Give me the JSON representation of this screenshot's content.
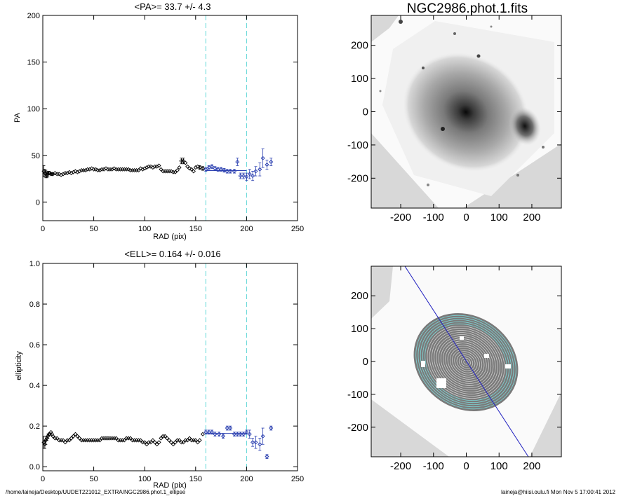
{
  "footer": {
    "path": "/home/laineja/Desktop/UUDET221012_EXTRA/NGC2986.phot.1_ellipse",
    "user_date": "laineja@hiisi.oulu.fi  Mon Nov  5 17:00:41 2012"
  },
  "colors": {
    "points": "#000000",
    "fit_points": "#2a3fb0",
    "fit_line": "#2a3fb0",
    "range_lines": "#5fd6d6",
    "contours": "#7fd8d8",
    "major_axis": "#2020c0"
  },
  "chart_data": [
    {
      "type": "scatter",
      "title": "<PA>=  33.7 +/-   4.3",
      "xlabel": "RAD (pix)",
      "ylabel": "PA",
      "xlim": [
        0,
        250
      ],
      "ylim": [
        -20,
        200
      ],
      "xticks": [
        "0",
        "50",
        "100",
        "150",
        "200",
        "250"
      ],
      "yticks": [
        "0",
        "50",
        "100",
        "150",
        "200"
      ],
      "range_lines": [
        160,
        200
      ],
      "fit_line": {
        "x": [
          160,
          200
        ],
        "y": 33.7
      },
      "series": [
        {
          "values": [
            [
              1,
              33
            ],
            [
              2,
              31
            ],
            [
              3,
              30
            ],
            [
              4,
              29
            ],
            [
              5,
              30
            ],
            [
              6,
              31
            ],
            [
              7,
              31
            ],
            [
              8,
              30
            ],
            [
              9,
              30
            ],
            [
              10,
              30
            ],
            [
              12,
              31
            ],
            [
              14,
              30
            ],
            [
              16,
              30
            ],
            [
              18,
              29
            ],
            [
              20,
              30
            ],
            [
              22,
              31
            ],
            [
              24,
              31
            ],
            [
              26,
              32
            ],
            [
              28,
              31
            ],
            [
              30,
              32
            ],
            [
              32,
              33
            ],
            [
              34,
              32
            ],
            [
              36,
              33
            ],
            [
              38,
              34
            ],
            [
              40,
              34
            ],
            [
              42,
              34
            ],
            [
              44,
              35
            ],
            [
              46,
              35
            ],
            [
              48,
              36
            ],
            [
              50,
              35
            ],
            [
              52,
              35
            ],
            [
              54,
              34
            ],
            [
              56,
              34
            ],
            [
              58,
              35
            ],
            [
              60,
              35
            ],
            [
              62,
              36
            ],
            [
              64,
              35
            ],
            [
              66,
              35
            ],
            [
              68,
              35
            ],
            [
              70,
              36
            ],
            [
              72,
              35
            ],
            [
              74,
              35
            ],
            [
              76,
              35
            ],
            [
              78,
              35
            ],
            [
              80,
              35
            ],
            [
              82,
              35
            ],
            [
              84,
              35
            ],
            [
              86,
              34
            ],
            [
              88,
              34
            ],
            [
              90,
              34
            ],
            [
              92,
              34
            ],
            [
              94,
              34
            ],
            [
              96,
              36
            ],
            [
              98,
              35
            ],
            [
              100,
              36
            ],
            [
              102,
              37
            ],
            [
              104,
              38
            ],
            [
              106,
              38
            ],
            [
              108,
              37
            ],
            [
              110,
              38
            ],
            [
              112,
              38
            ],
            [
              114,
              39
            ],
            [
              116,
              35
            ],
            [
              118,
              33
            ],
            [
              120,
              33
            ],
            [
              122,
              33
            ],
            [
              124,
              33
            ],
            [
              126,
              33
            ],
            [
              128,
              32
            ],
            [
              130,
              32
            ],
            [
              132,
              34
            ],
            [
              134,
              37
            ],
            [
              136,
              44
            ],
            [
              138,
              44
            ],
            [
              140,
              42
            ],
            [
              142,
              38
            ],
            [
              144,
              36
            ],
            [
              146,
              35
            ],
            [
              148,
              33
            ],
            [
              150,
              37
            ],
            [
              152,
              38
            ],
            [
              154,
              37
            ],
            [
              157,
              36
            ]
          ],
          "errors": [
            [
              1,
              6
            ],
            [
              2,
              4
            ],
            [
              3,
              4
            ],
            [
              4,
              3
            ],
            [
              5,
              3
            ],
            [
              6,
              2
            ],
            [
              136,
              3
            ],
            [
              138,
              3
            ],
            [
              154,
              2
            ],
            [
              157,
              2
            ]
          ]
        },
        {
          "name": "fit",
          "values": [
            [
              160,
              35
            ],
            [
              163,
              37
            ],
            [
              166,
              38
            ],
            [
              169,
              36
            ],
            [
              172,
              35
            ],
            [
              175,
              35
            ],
            [
              178,
              34
            ],
            [
              181,
              33
            ],
            [
              184,
              33
            ],
            [
              188,
              33
            ],
            [
              191,
              43
            ],
            [
              194,
              28
            ],
            [
              197,
              28
            ],
            [
              200,
              27
            ],
            [
              203,
              30
            ],
            [
              206,
              28
            ],
            [
              209,
              33
            ],
            [
              213,
              35
            ],
            [
              216,
              47
            ],
            [
              220,
              40
            ],
            [
              224,
              43
            ]
          ],
          "errors": [
            [
              160,
              2
            ],
            [
              163,
              2
            ],
            [
              166,
              2
            ],
            [
              169,
              2
            ],
            [
              172,
              2
            ],
            [
              175,
              2
            ],
            [
              178,
              2
            ],
            [
              181,
              2
            ],
            [
              184,
              2
            ],
            [
              188,
              2
            ],
            [
              191,
              4
            ],
            [
              194,
              3
            ],
            [
              197,
              3
            ],
            [
              200,
              4
            ],
            [
              203,
              5
            ],
            [
              206,
              5
            ],
            [
              209,
              5
            ],
            [
              213,
              7
            ],
            [
              216,
              10
            ],
            [
              220,
              5
            ],
            [
              224,
              4
            ]
          ]
        }
      ]
    },
    {
      "type": "scatter",
      "title": "<ELL>= 0.164 +/-  0.016",
      "xlabel": "RAD (pix)",
      "ylabel": "ellipticity",
      "xlim": [
        0,
        250
      ],
      "ylim": [
        -0.02,
        1.0
      ],
      "xticks": [
        "0",
        "50",
        "100",
        "150",
        "200",
        "250"
      ],
      "yticks": [
        "0.0",
        "0.2",
        "0.4",
        "0.6",
        "0.8",
        "1.0"
      ],
      "range_lines": [
        160,
        200
      ],
      "fit_line": {
        "x": [
          160,
          200
        ],
        "y": 0.164
      },
      "series": [
        {
          "values": [
            [
              1,
              0.12
            ],
            [
              2,
              0.11
            ],
            [
              3,
              0.13
            ],
            [
              4,
              0.14
            ],
            [
              5,
              0.15
            ],
            [
              6,
              0.16
            ],
            [
              7,
              0.16
            ],
            [
              8,
              0.17
            ],
            [
              9,
              0.16
            ],
            [
              10,
              0.15
            ],
            [
              12,
              0.14
            ],
            [
              14,
              0.14
            ],
            [
              16,
              0.13
            ],
            [
              18,
              0.13
            ],
            [
              20,
              0.13
            ],
            [
              22,
              0.12
            ],
            [
              24,
              0.13
            ],
            [
              26,
              0.13
            ],
            [
              28,
              0.14
            ],
            [
              30,
              0.15
            ],
            [
              32,
              0.16
            ],
            [
              34,
              0.15
            ],
            [
              36,
              0.14
            ],
            [
              38,
              0.13
            ],
            [
              40,
              0.13
            ],
            [
              42,
              0.13
            ],
            [
              44,
              0.13
            ],
            [
              46,
              0.13
            ],
            [
              48,
              0.13
            ],
            [
              50,
              0.13
            ],
            [
              52,
              0.13
            ],
            [
              54,
              0.13
            ],
            [
              56,
              0.13
            ],
            [
              58,
              0.14
            ],
            [
              60,
              0.14
            ],
            [
              62,
              0.14
            ],
            [
              64,
              0.14
            ],
            [
              66,
              0.14
            ],
            [
              68,
              0.14
            ],
            [
              70,
              0.14
            ],
            [
              72,
              0.14
            ],
            [
              74,
              0.13
            ],
            [
              76,
              0.13
            ],
            [
              78,
              0.13
            ],
            [
              80,
              0.13
            ],
            [
              82,
              0.14
            ],
            [
              84,
              0.14
            ],
            [
              86,
              0.14
            ],
            [
              88,
              0.13
            ],
            [
              90,
              0.13
            ],
            [
              92,
              0.13
            ],
            [
              94,
              0.13
            ],
            [
              96,
              0.13
            ],
            [
              98,
              0.12
            ],
            [
              100,
              0.12
            ],
            [
              102,
              0.11
            ],
            [
              104,
              0.12
            ],
            [
              106,
              0.12
            ],
            [
              108,
              0.13
            ],
            [
              110,
              0.12
            ],
            [
              112,
              0.11
            ],
            [
              114,
              0.12
            ],
            [
              116,
              0.14
            ],
            [
              118,
              0.15
            ],
            [
              120,
              0.15
            ],
            [
              122,
              0.14
            ],
            [
              124,
              0.13
            ],
            [
              126,
              0.12
            ],
            [
              128,
              0.11
            ],
            [
              130,
              0.12
            ],
            [
              132,
              0.13
            ],
            [
              134,
              0.13
            ],
            [
              136,
              0.12
            ],
            [
              138,
              0.12
            ],
            [
              140,
              0.13
            ],
            [
              142,
              0.13
            ],
            [
              144,
              0.14
            ],
            [
              146,
              0.13
            ],
            [
              148,
              0.13
            ],
            [
              150,
              0.13
            ],
            [
              152,
              0.12
            ],
            [
              154,
              0.13
            ],
            [
              157,
              0.16
            ]
          ],
          "errors": [
            [
              1,
              0.03
            ],
            [
              2,
              0.02
            ],
            [
              3,
              0.02
            ],
            [
              4,
              0.01
            ],
            [
              5,
              0.01
            ]
          ]
        },
        {
          "name": "fit",
          "values": [
            [
              160,
              0.17
            ],
            [
              163,
              0.17
            ],
            [
              166,
              0.17
            ],
            [
              169,
              0.16
            ],
            [
              173,
              0.16
            ],
            [
              177,
              0.15
            ],
            [
              181,
              0.19
            ],
            [
              184,
              0.19
            ],
            [
              188,
              0.16
            ],
            [
              191,
              0.16
            ],
            [
              194,
              0.16
            ],
            [
              197,
              0.16
            ],
            [
              200,
              0.17
            ],
            [
              203,
              0.16
            ],
            [
              206,
              0.12
            ],
            [
              209,
              0.12
            ],
            [
              213,
              0.11
            ],
            [
              216,
              0.15
            ],
            [
              220,
              0.05
            ],
            [
              224,
              0.19
            ]
          ],
          "errors": [
            [
              160,
              0.01
            ],
            [
              163,
              0.01
            ],
            [
              166,
              0.01
            ],
            [
              169,
              0.01
            ],
            [
              173,
              0.01
            ],
            [
              177,
              0.01
            ],
            [
              181,
              0.01
            ],
            [
              184,
              0.01
            ],
            [
              188,
              0.01
            ],
            [
              191,
              0.01
            ],
            [
              194,
              0.01
            ],
            [
              197,
              0.01
            ],
            [
              200,
              0.01
            ],
            [
              203,
              0.02
            ],
            [
              206,
              0.02
            ],
            [
              209,
              0.03
            ],
            [
              213,
              0.03
            ],
            [
              216,
              0.04
            ],
            [
              220,
              0.01
            ],
            [
              224,
              0.01
            ]
          ]
        }
      ]
    },
    {
      "type": "image",
      "title": "NGC2986.phot.1.fits",
      "xlim": [
        -290,
        290
      ],
      "ylim": [
        -290,
        290
      ],
      "xticks": [
        "-200",
        "-100",
        "0",
        "100",
        "200"
      ],
      "yticks": [
        "200",
        "100",
        "0",
        "-100",
        "-200"
      ]
    },
    {
      "type": "image",
      "title": "",
      "xlim": [
        -290,
        290
      ],
      "ylim": [
        -290,
        290
      ],
      "xticks": [
        "-200",
        "-100",
        "0",
        "100",
        "200"
      ],
      "yticks": [
        "200",
        "100",
        "0",
        "-100",
        "-200"
      ]
    }
  ]
}
